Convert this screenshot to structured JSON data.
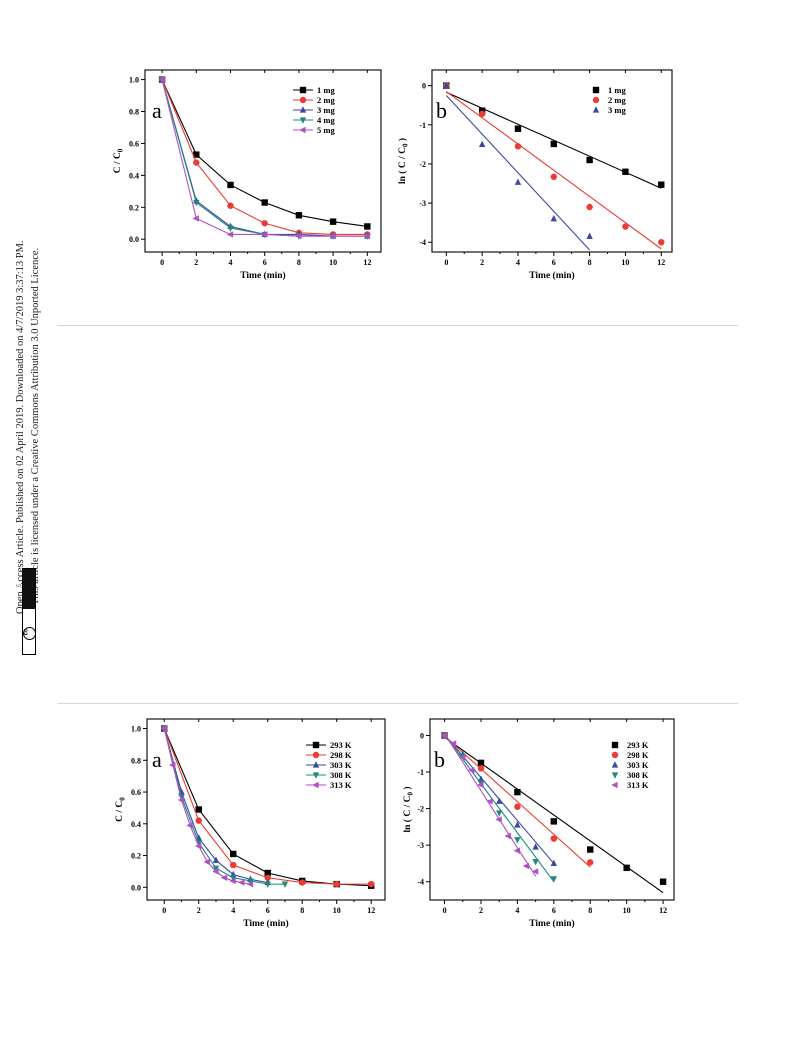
{
  "sidebar": {
    "line1": "Open Access Article. Published on 02 April 2019. Downloaded on 4/7/2019 3:37:13 PM.",
    "line2": "This article is licensed under a Creative Commons Attribution 3.0 Unported Licence.",
    "cc_badge": "BY",
    "cc_mark": "cc",
    "cc_icon": "creative-commons-by-icon"
  },
  "colors": {
    "black": "#000000",
    "red": "#ea3c35",
    "blue": "#3b4aa0",
    "teal": "#1e8a7e",
    "purple": "#b24fc4",
    "divider": "#d8d8cc"
  },
  "chart_data": [
    {
      "id": "fig-top-a",
      "type": "line",
      "panel_label": "a",
      "title": "",
      "xlabel": "Time (min)",
      "ylabel": "C / C0",
      "xlim": [
        -1,
        12.8
      ],
      "ylim": [
        -0.08,
        1.06
      ],
      "xticks": [
        0,
        2,
        4,
        6,
        8,
        10,
        12
      ],
      "yticks": [
        0.0,
        0.2,
        0.4,
        0.6,
        0.8,
        1.0
      ],
      "ytick_labels": [
        "0.0",
        "0.2",
        "0.4",
        "0.6",
        "0.8",
        "1.0"
      ],
      "legend_position": "top-right",
      "series": [
        {
          "name": "1 mg",
          "marker": "square",
          "color": "#000000",
          "x": [
            0,
            2,
            4,
            6,
            8,
            10,
            12
          ],
          "y": [
            1.0,
            0.53,
            0.34,
            0.23,
            0.15,
            0.11,
            0.08
          ]
        },
        {
          "name": "2 mg",
          "marker": "circle",
          "color": "#ea3c35",
          "x": [
            0,
            2,
            4,
            6,
            8,
            10,
            12
          ],
          "y": [
            1.0,
            0.48,
            0.21,
            0.1,
            0.04,
            0.03,
            0.03
          ]
        },
        {
          "name": "3 mg",
          "marker": "triangle-up",
          "color": "#3b4aa0",
          "x": [
            0,
            2,
            4,
            6,
            8,
            10,
            12
          ],
          "y": [
            1.0,
            0.24,
            0.08,
            0.03,
            0.03,
            0.02,
            0.02
          ]
        },
        {
          "name": "4 mg",
          "marker": "triangle-down",
          "color": "#1e8a7e",
          "x": [
            0,
            2,
            4,
            6,
            8,
            10,
            12
          ],
          "y": [
            1.0,
            0.23,
            0.07,
            0.03,
            0.02,
            0.02,
            0.02
          ]
        },
        {
          "name": "5 mg",
          "marker": "triangle-left",
          "color": "#b24fc4",
          "x": [
            0,
            2,
            4,
            6,
            8,
            10,
            12
          ],
          "y": [
            1.0,
            0.13,
            0.03,
            0.03,
            0.02,
            0.02,
            0.02
          ]
        }
      ]
    },
    {
      "id": "fig-top-b",
      "type": "scatter",
      "panel_label": "b",
      "title": "",
      "xlabel": "Time (min)",
      "ylabel": "ln ( C / C0 )",
      "xlim": [
        -0.8,
        12.6
      ],
      "ylim": [
        -4.25,
        0.4
      ],
      "xticks": [
        0,
        2,
        4,
        6,
        8,
        10,
        12
      ],
      "yticks": [
        0,
        -1,
        -2,
        -3,
        -4
      ],
      "ytick_labels": [
        "0",
        "-1",
        "-2",
        "-3",
        "-4"
      ],
      "legend_position": "top-right",
      "series": [
        {
          "name": "1 mg",
          "marker": "square",
          "color": "#000000",
          "x": [
            0,
            2,
            4,
            6,
            8,
            10,
            12
          ],
          "y": [
            0.0,
            -0.64,
            -1.1,
            -1.49,
            -1.9,
            -2.2,
            -2.53
          ],
          "fit": [
            [
              0,
              -0.17
            ],
            [
              12,
              -2.62
            ]
          ]
        },
        {
          "name": "2 mg",
          "marker": "circle",
          "color": "#ea3c35",
          "x": [
            0,
            2,
            4,
            6,
            8,
            10,
            12
          ],
          "y": [
            0.0,
            -0.72,
            -1.55,
            -2.33,
            -3.1,
            -3.6,
            -4.0
          ],
          "fit": [
            [
              0,
              -0.15
            ],
            [
              12,
              -4.17
            ]
          ]
        },
        {
          "name": "3 mg",
          "marker": "triangle-up",
          "color": "#3b4aa0",
          "x": [
            0,
            2,
            4,
            6,
            8
          ],
          "y": [
            0.0,
            -1.5,
            -2.47,
            -3.4,
            -3.85
          ],
          "fit": [
            [
              0,
              -0.25
            ],
            [
              8,
              -4.2
            ]
          ]
        }
      ]
    },
    {
      "id": "fig-bottom-a",
      "type": "line",
      "panel_label": "a",
      "title": "",
      "xlabel": "Time (min)",
      "ylabel": "C / C0",
      "xlim": [
        -1,
        12.8
      ],
      "ylim": [
        -0.08,
        1.06
      ],
      "xticks": [
        0,
        2,
        4,
        6,
        8,
        10,
        12
      ],
      "yticks": [
        0.0,
        0.2,
        0.4,
        0.6,
        0.8,
        1.0
      ],
      "ytick_labels": [
        "0.0",
        "0.2",
        "0.4",
        "0.6",
        "0.8",
        "1.0"
      ],
      "legend_position": "top-right",
      "series": [
        {
          "name": "293 K",
          "marker": "square",
          "color": "#000000",
          "x": [
            0,
            2,
            4,
            6,
            8,
            10,
            12
          ],
          "y": [
            1.0,
            0.49,
            0.21,
            0.09,
            0.04,
            0.02,
            0.01
          ]
        },
        {
          "name": "298 K",
          "marker": "circle",
          "color": "#ea3c35",
          "x": [
            0,
            2,
            4,
            6,
            8,
            10,
            12
          ],
          "y": [
            1.0,
            0.42,
            0.14,
            0.06,
            0.03,
            0.02,
            0.02
          ]
        },
        {
          "name": "303 K",
          "marker": "triangle-up",
          "color": "#3b4aa0",
          "x": [
            0,
            1,
            2,
            3,
            4,
            5,
            6
          ],
          "y": [
            1.0,
            0.6,
            0.31,
            0.17,
            0.08,
            0.05,
            0.03
          ]
        },
        {
          "name": "308 K",
          "marker": "triangle-down",
          "color": "#1e8a7e",
          "x": [
            0,
            1,
            2,
            3,
            4,
            5,
            6,
            7
          ],
          "y": [
            1.0,
            0.57,
            0.28,
            0.12,
            0.06,
            0.04,
            0.02,
            0.02
          ]
        },
        {
          "name": "313 K",
          "marker": "triangle-left",
          "color": "#b24fc4",
          "x": [
            0,
            0.5,
            1,
            1.5,
            2,
            2.5,
            3,
            3.5,
            4,
            4.5,
            5
          ],
          "y": [
            1.0,
            0.77,
            0.55,
            0.39,
            0.26,
            0.16,
            0.1,
            0.06,
            0.04,
            0.03,
            0.02
          ]
        }
      ]
    },
    {
      "id": "fig-bottom-b",
      "type": "scatter",
      "panel_label": "b",
      "title": "",
      "xlabel": "Time (min)",
      "ylabel": "ln ( C / C0 )",
      "xlim": [
        -0.8,
        12.6
      ],
      "ylim": [
        -4.5,
        0.45
      ],
      "xticks": [
        0,
        2,
        4,
        6,
        8,
        10,
        12
      ],
      "yticks": [
        0,
        -1,
        -2,
        -3,
        -4
      ],
      "ytick_labels": [
        "0",
        "-1",
        "-2",
        "-3",
        "-4"
      ],
      "legend_position": "top-right",
      "series": [
        {
          "name": "293 K",
          "marker": "square",
          "color": "#000000",
          "x": [
            0,
            2,
            4,
            6,
            8,
            10,
            12
          ],
          "y": [
            0.0,
            -0.75,
            -1.55,
            -2.35,
            -3.12,
            -3.62,
            -4.0
          ],
          "fit": [
            [
              0,
              -0.05
            ],
            [
              12,
              -4.3
            ]
          ]
        },
        {
          "name": "298 K",
          "marker": "circle",
          "color": "#ea3c35",
          "x": [
            0,
            2,
            4,
            6,
            8
          ],
          "y": [
            0.0,
            -0.9,
            -1.95,
            -2.82,
            -3.47
          ],
          "fit": [
            [
              0,
              -0.02
            ],
            [
              8,
              -3.6
            ]
          ]
        },
        {
          "name": "303 K",
          "marker": "triangle-up",
          "color": "#3b4aa0",
          "x": [
            0,
            1,
            2,
            3,
            4,
            5,
            6
          ],
          "y": [
            0.0,
            -0.52,
            -1.2,
            -1.8,
            -2.45,
            -3.05,
            -3.5
          ],
          "fit": [
            [
              0,
              0.02
            ],
            [
              6,
              -3.5
            ]
          ]
        },
        {
          "name": "308 K",
          "marker": "triangle-down",
          "color": "#1e8a7e",
          "x": [
            0,
            1,
            2,
            3,
            4,
            5,
            6
          ],
          "y": [
            0.0,
            -0.57,
            -1.3,
            -2.12,
            -2.85,
            -3.45,
            -3.92
          ],
          "fit": [
            [
              0,
              0.02
            ],
            [
              6,
              -4.0
            ]
          ]
        },
        {
          "name": "313 K",
          "marker": "triangle-left",
          "color": "#b24fc4",
          "x": [
            0,
            0.5,
            1,
            1.5,
            2,
            2.5,
            3,
            3.5,
            4,
            4.5,
            5
          ],
          "y": [
            0.0,
            -0.22,
            -0.6,
            -0.95,
            -1.35,
            -1.8,
            -2.3,
            -2.75,
            -3.15,
            -3.57,
            -3.72
          ],
          "fit": [
            [
              0,
              0.05
            ],
            [
              5,
              -3.85
            ]
          ]
        }
      ]
    }
  ]
}
